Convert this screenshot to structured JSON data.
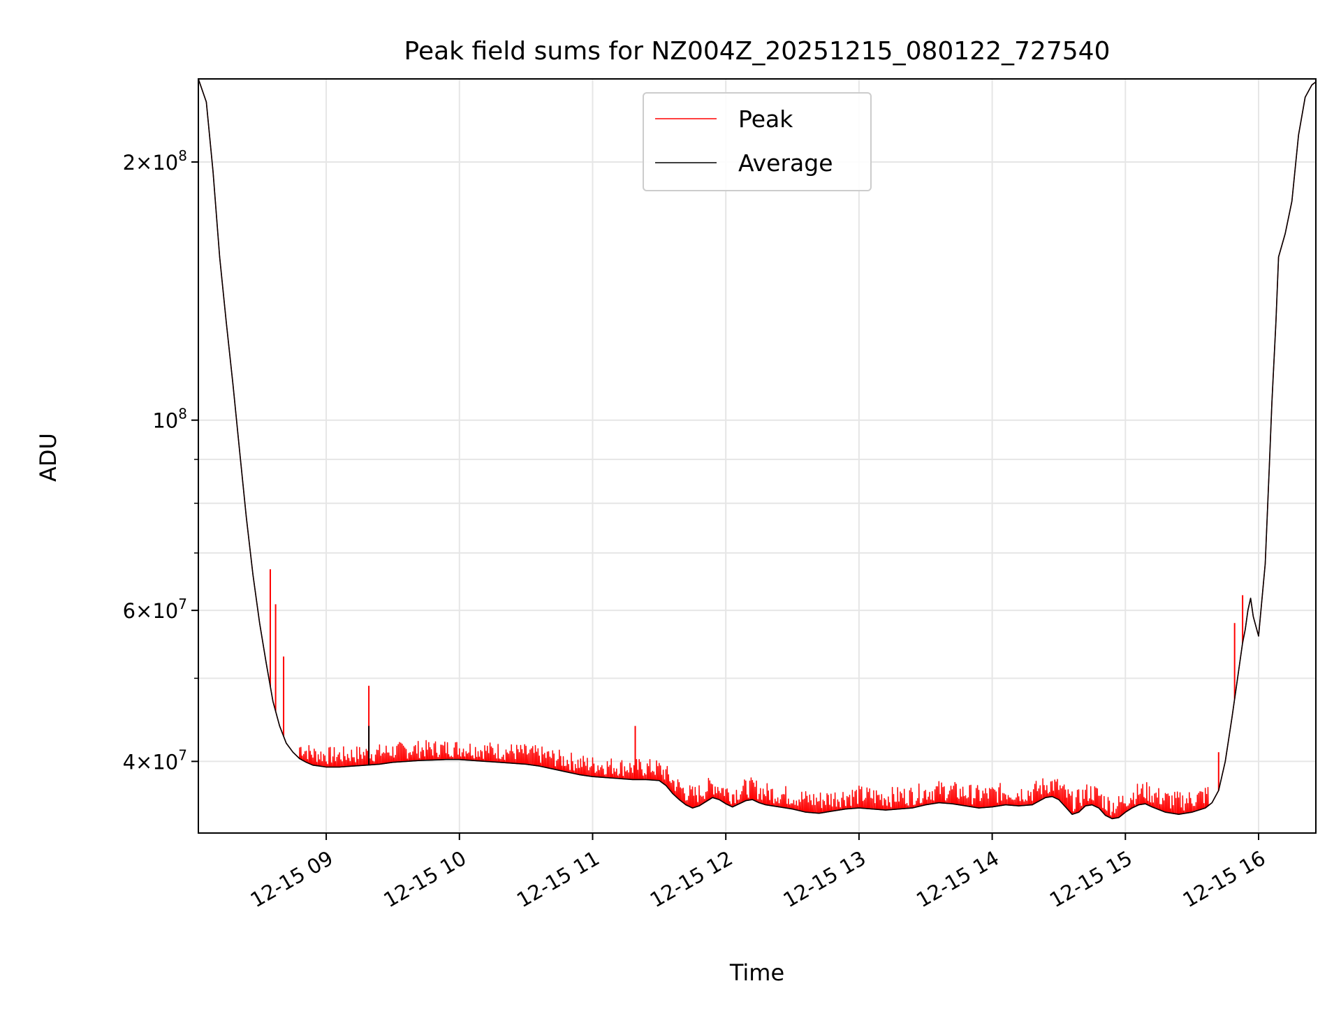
{
  "chart_data": {
    "type": "line",
    "title": "Peak field sums for NZ004Z_20251215_080122_727540",
    "xlabel": "Time",
    "ylabel": "ADU",
    "yscale": "log",
    "x_unit": "hours",
    "xlim": [
      8.04,
      16.43
    ],
    "ylim": [
      33000000,
      250000000
    ],
    "grid": true,
    "legend_position": "upper center",
    "x_ticks": [
      {
        "value": 9,
        "label": "12-15 09"
      },
      {
        "value": 10,
        "label": "12-15 10"
      },
      {
        "value": 11,
        "label": "12-15 11"
      },
      {
        "value": 12,
        "label": "12-15 12"
      },
      {
        "value": 13,
        "label": "12-15 13"
      },
      {
        "value": 14,
        "label": "12-15 14"
      },
      {
        "value": 15,
        "label": "12-15 15"
      },
      {
        "value": 16,
        "label": "12-15 16"
      }
    ],
    "y_major_ticks": [
      {
        "value": 40000000,
        "mant": "4",
        "exp": "7"
      },
      {
        "value": 60000000,
        "mant": "6",
        "exp": "7"
      },
      {
        "value": 100000000,
        "mant": "",
        "exp": "8"
      },
      {
        "value": 200000000,
        "mant": "2",
        "exp": "8"
      }
    ],
    "y_minor_ticks": [
      50000000,
      70000000,
      80000000,
      90000000
    ],
    "series": [
      {
        "name": "Average",
        "color": "#000000",
        "x": [
          8.04,
          8.1,
          8.15,
          8.2,
          8.25,
          8.3,
          8.35,
          8.4,
          8.45,
          8.5,
          8.55,
          8.6,
          8.65,
          8.7,
          8.75,
          8.8,
          8.85,
          8.9,
          8.95,
          9.0,
          9.1,
          9.2,
          9.3,
          9.4,
          9.5,
          9.6,
          9.7,
          9.8,
          9.9,
          10.0,
          10.1,
          10.2,
          10.3,
          10.4,
          10.5,
          10.6,
          10.7,
          10.8,
          10.9,
          11.0,
          11.1,
          11.2,
          11.3,
          11.4,
          11.5,
          11.55,
          11.6,
          11.65,
          11.7,
          11.75,
          11.8,
          11.85,
          11.9,
          11.95,
          12.0,
          12.05,
          12.1,
          12.15,
          12.2,
          12.25,
          12.3,
          12.35,
          12.4,
          12.5,
          12.6,
          12.7,
          12.8,
          12.9,
          13.0,
          13.1,
          13.2,
          13.3,
          13.4,
          13.5,
          13.6,
          13.7,
          13.8,
          13.9,
          14.0,
          14.1,
          14.2,
          14.3,
          14.4,
          14.45,
          14.5,
          14.55,
          14.6,
          14.65,
          14.7,
          14.75,
          14.8,
          14.85,
          14.9,
          14.95,
          15.0,
          15.05,
          15.1,
          15.15,
          15.2,
          15.3,
          15.4,
          15.5,
          15.6,
          15.65,
          15.7,
          15.75,
          15.8,
          15.85,
          15.88,
          15.9,
          15.92,
          15.94,
          15.96,
          16.0,
          16.05,
          16.08,
          16.1,
          16.13,
          16.15,
          16.2,
          16.25,
          16.3,
          16.35,
          16.4,
          16.43
        ],
        "values": [
          250000000,
          235000000,
          195000000,
          155000000,
          130000000,
          110000000,
          92000000,
          77000000,
          66000000,
          58000000,
          52000000,
          47000000,
          44000000,
          42000000,
          41000000,
          40300000,
          39900000,
          39600000,
          39500000,
          39400000,
          39400000,
          39500000,
          39600000,
          39700000,
          39900000,
          40000000,
          40100000,
          40150000,
          40200000,
          40200000,
          40100000,
          40000000,
          39900000,
          39800000,
          39700000,
          39500000,
          39200000,
          38900000,
          38600000,
          38400000,
          38300000,
          38200000,
          38100000,
          38100000,
          38000000,
          37500000,
          36700000,
          36100000,
          35600000,
          35300000,
          35500000,
          35900000,
          36300000,
          36100000,
          35700000,
          35400000,
          35700000,
          36000000,
          36100000,
          35800000,
          35600000,
          35500000,
          35400000,
          35200000,
          34900000,
          34800000,
          35000000,
          35200000,
          35300000,
          35200000,
          35100000,
          35200000,
          35300000,
          35600000,
          35800000,
          35700000,
          35500000,
          35300000,
          35400000,
          35600000,
          35500000,
          35600000,
          36300000,
          36400000,
          36100000,
          35400000,
          34700000,
          34900000,
          35500000,
          35600000,
          35300000,
          34600000,
          34300000,
          34400000,
          34900000,
          35300000,
          35600000,
          35700000,
          35400000,
          34900000,
          34700000,
          34900000,
          35300000,
          35800000,
          37000000,
          40000000,
          45000000,
          51000000,
          55000000,
          57000000,
          60000000,
          62000000,
          59000000,
          56000000,
          68000000,
          88000000,
          105000000,
          130000000,
          155000000,
          165000000,
          180000000,
          215000000,
          238000000,
          246000000,
          248000000
        ]
      },
      {
        "name": "Peak",
        "color": "#ff0000",
        "noise_from": 8.8,
        "noise_to": 15.62,
        "noise_step": 0.01,
        "noise_levels": [
          200000,
          2000000
        ],
        "spikes": [
          {
            "x": 9.32,
            "value": 49000000
          },
          {
            "x": 11.32,
            "value": 44000000
          },
          {
            "x": 8.58,
            "value": 67000000
          },
          {
            "x": 8.62,
            "value": 61000000
          },
          {
            "x": 8.68,
            "value": 53000000
          },
          {
            "x": 15.88,
            "value": 62500000
          },
          {
            "x": 15.82,
            "value": 58000000
          },
          {
            "x": 15.7,
            "value": 41000000
          }
        ]
      }
    ]
  }
}
